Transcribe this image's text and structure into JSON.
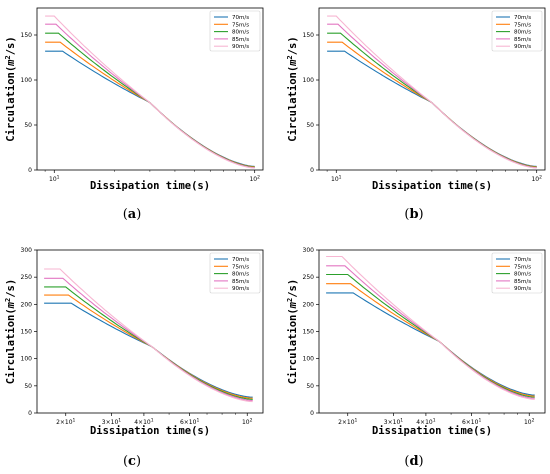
{
  "colors": [
    "#1f77b4",
    "#ff7f0e",
    "#2ca02c",
    "#e377c2",
    "#f7b6d2"
  ],
  "chart_data": [
    {
      "type": "line",
      "caption": "(a)",
      "xlabel": "Dissipation time(s)",
      "ylabel_prefix": "Circulation(",
      "ylabel_unit": "m",
      "ylabel_sup": "2",
      "ylabel_suffix": "/s)",
      "xscale": "log",
      "xlim": [
        8.2,
        110
      ],
      "ylim": [
        0,
        180
      ],
      "yticks": [
        0,
        50,
        100,
        150
      ],
      "xticks": [
        {
          "v": 10,
          "base": "10",
          "exp": "1"
        },
        {
          "v": 100,
          "base": "10",
          "exp": "2"
        }
      ],
      "legend_position": "top-right",
      "series": [
        {
          "name": "70m/s",
          "x": [
            9,
            11,
            30,
            100
          ],
          "y": [
            132,
            132,
            75,
            4
          ]
        },
        {
          "name": "75m/s",
          "x": [
            9,
            10.7,
            30,
            100
          ],
          "y": [
            142,
            142,
            75,
            3.5
          ]
        },
        {
          "name": "80m/s",
          "x": [
            9,
            10.5,
            30,
            100
          ],
          "y": [
            152,
            152,
            75,
            3
          ]
        },
        {
          "name": "85m/s",
          "x": [
            9,
            10.2,
            30,
            100
          ],
          "y": [
            162,
            162,
            75,
            2.6
          ]
        },
        {
          "name": "90m/s",
          "x": [
            9,
            10,
            30,
            100
          ],
          "y": [
            171,
            171,
            75,
            2.2
          ]
        }
      ]
    },
    {
      "type": "line",
      "caption": "(b)",
      "xlabel": "Dissipation time(s)",
      "ylabel_prefix": "Circulation(",
      "ylabel_unit": "m",
      "ylabel_sup": "2",
      "ylabel_suffix": "/s)",
      "xscale": "log",
      "xlim": [
        8.2,
        110
      ],
      "ylim": [
        0,
        180
      ],
      "yticks": [
        0,
        50,
        100,
        150
      ],
      "xticks": [
        {
          "v": 10,
          "base": "10",
          "exp": "1"
        },
        {
          "v": 100,
          "base": "10",
          "exp": "2"
        }
      ],
      "legend_position": "top-right",
      "series": [
        {
          "name": "70m/s",
          "x": [
            9,
            11,
            30,
            100
          ],
          "y": [
            132,
            132,
            75,
            4
          ]
        },
        {
          "name": "75m/s",
          "x": [
            9,
            10.7,
            30,
            100
          ],
          "y": [
            142,
            142,
            75,
            3.5
          ]
        },
        {
          "name": "80m/s",
          "x": [
            9,
            10.5,
            30,
            100
          ],
          "y": [
            152,
            152,
            75,
            3
          ]
        },
        {
          "name": "85m/s",
          "x": [
            9,
            10.2,
            30,
            100
          ],
          "y": [
            162,
            162,
            75,
            2.6
          ]
        },
        {
          "name": "90m/s",
          "x": [
            9,
            10,
            30,
            100
          ],
          "y": [
            171,
            171,
            75,
            2.2
          ]
        }
      ]
    },
    {
      "type": "line",
      "caption": "(c)",
      "xlabel": "Dissipation time(s)",
      "ylabel_prefix": "Circulation(",
      "ylabel_unit": "m",
      "ylabel_sup": "2",
      "ylabel_suffix": "/s)",
      "xscale": "log",
      "xlim": [
        15.5,
        115
      ],
      "ylim": [
        0,
        300
      ],
      "yticks": [
        0,
        50,
        100,
        150,
        200,
        250,
        300
      ],
      "xticks": [
        {
          "v": 20,
          "base": "2×10",
          "exp": "1"
        },
        {
          "v": 30,
          "base": "3×10",
          "exp": "1"
        },
        {
          "v": 40,
          "base": "4×10",
          "exp": "1"
        },
        {
          "v": 60,
          "base": "6×10",
          "exp": "1"
        },
        {
          "v": 100,
          "base": "10",
          "exp": "2"
        }
      ],
      "legend_position": "top-right",
      "series": [
        {
          "name": "70m/s",
          "x": [
            16.5,
            21,
            43,
            105
          ],
          "y": [
            202,
            202,
            122,
            29
          ]
        },
        {
          "name": "75m/s",
          "x": [
            16.5,
            20.5,
            43,
            105
          ],
          "y": [
            217,
            217,
            122,
            27
          ]
        },
        {
          "name": "80m/s",
          "x": [
            16.5,
            20,
            43,
            105
          ],
          "y": [
            232,
            232,
            122,
            25
          ]
        },
        {
          "name": "85m/s",
          "x": [
            16.5,
            19.5,
            43,
            105
          ],
          "y": [
            248,
            248,
            122,
            23
          ]
        },
        {
          "name": "90m/s",
          "x": [
            16.5,
            19,
            43,
            105
          ],
          "y": [
            265,
            265,
            122,
            21
          ]
        }
      ]
    },
    {
      "type": "line",
      "caption": "(d)",
      "xlabel": "Dissipation time(s)",
      "ylabel_prefix": "Circulation(",
      "ylabel_unit": "m",
      "ylabel_sup": "2",
      "ylabel_suffix": "/s)",
      "xscale": "log",
      "xlim": [
        15.5,
        115
      ],
      "ylim": [
        0,
        300
      ],
      "yticks": [
        0,
        50,
        100,
        150,
        200,
        250,
        300
      ],
      "xticks": [
        {
          "v": 20,
          "base": "2×10",
          "exp": "1"
        },
        {
          "v": 30,
          "base": "3×10",
          "exp": "1"
        },
        {
          "v": 40,
          "base": "4×10",
          "exp": "1"
        },
        {
          "v": 60,
          "base": "6×10",
          "exp": "1"
        },
        {
          "v": 100,
          "base": "10",
          "exp": "2"
        }
      ],
      "legend_position": "top-right",
      "series": [
        {
          "name": "70m/s",
          "x": [
            16.5,
            21,
            45,
            105
          ],
          "y": [
            221,
            221,
            132,
            33
          ]
        },
        {
          "name": "75m/s",
          "x": [
            16.5,
            20.5,
            45,
            105
          ],
          "y": [
            238,
            238,
            132,
            31
          ]
        },
        {
          "name": "80m/s",
          "x": [
            16.5,
            20,
            45,
            105
          ],
          "y": [
            255,
            255,
            132,
            29
          ]
        },
        {
          "name": "85m/s",
          "x": [
            16.5,
            19.5,
            45,
            105
          ],
          "y": [
            271,
            271,
            132,
            27
          ]
        },
        {
          "name": "90m/s",
          "x": [
            16.5,
            19,
            45,
            105
          ],
          "y": [
            288,
            288,
            132,
            25
          ]
        }
      ]
    }
  ]
}
